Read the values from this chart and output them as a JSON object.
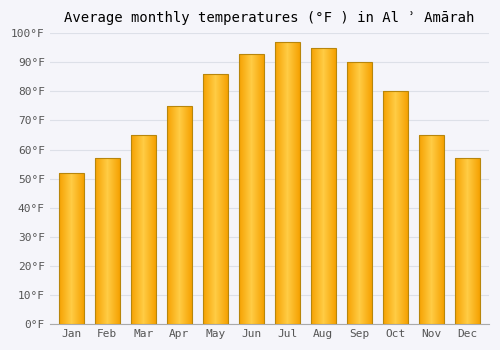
{
  "title": "Average monthly temperatures (°F ) in Al ʾ Amārah",
  "months": [
    "Jan",
    "Feb",
    "Mar",
    "Apr",
    "May",
    "Jun",
    "Jul",
    "Aug",
    "Sep",
    "Oct",
    "Nov",
    "Dec"
  ],
  "values": [
    52,
    57,
    65,
    75,
    86,
    93,
    97,
    95,
    90,
    80,
    65,
    57
  ],
  "ylim": [
    0,
    100
  ],
  "yticks": [
    0,
    10,
    20,
    30,
    40,
    50,
    60,
    70,
    80,
    90,
    100
  ],
  "ytick_labels": [
    "0°F",
    "10°F",
    "20°F",
    "30°F",
    "40°F",
    "50°F",
    "60°F",
    "70°F",
    "80°F",
    "90°F",
    "100°F"
  ],
  "bar_color_center": "#FFCC44",
  "bar_color_edge": "#F5A000",
  "bar_border_color": "#B8860B",
  "background_color": "#f5f5fa",
  "grid_color": "#dde0e8",
  "title_fontsize": 10,
  "tick_fontsize": 8,
  "bar_width": 0.7
}
